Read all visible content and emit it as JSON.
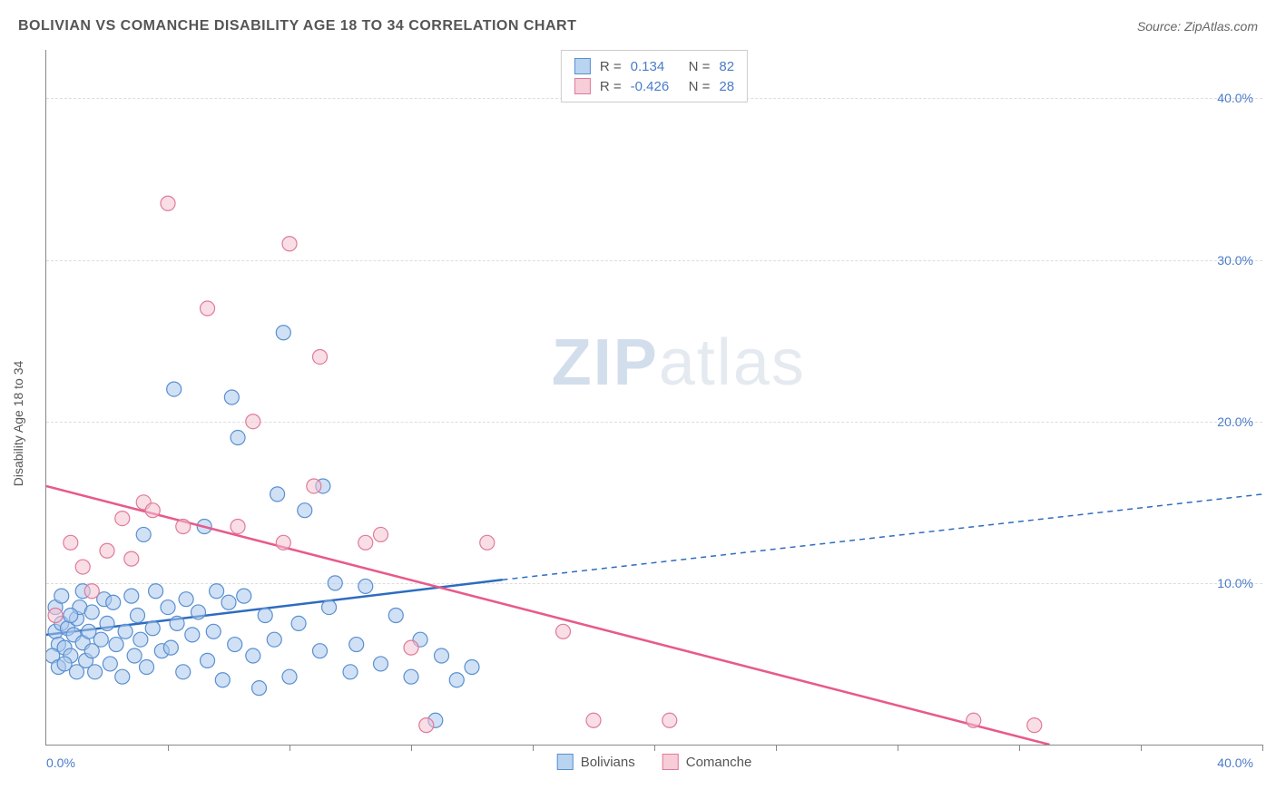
{
  "header": {
    "title": "BOLIVIAN VS COMANCHE DISABILITY AGE 18 TO 34 CORRELATION CHART",
    "source": "Source: ZipAtlas.com"
  },
  "axes": {
    "y_label": "Disability Age 18 to 34",
    "x_origin": "0.0%",
    "x_max": "40.0%",
    "xlim": [
      0,
      40
    ],
    "ylim": [
      0,
      43
    ],
    "y_ticks": [
      {
        "v": 10,
        "label": "10.0%"
      },
      {
        "v": 20,
        "label": "20.0%"
      },
      {
        "v": 30,
        "label": "30.0%"
      },
      {
        "v": 40,
        "label": "40.0%"
      }
    ],
    "x_ticks": [
      0,
      4,
      8,
      12,
      16,
      20,
      24,
      28,
      32,
      36,
      40
    ],
    "grid_color": "#dddddd",
    "axis_color": "#888888",
    "tick_label_color": "#4a7bc8"
  },
  "stats": {
    "rows": [
      {
        "swatch_fill": "#b9d4f0",
        "swatch_border": "#5a8fd0",
        "r_label": "R =",
        "r": "0.134",
        "n_label": "N =",
        "n": "82"
      },
      {
        "swatch_fill": "#f7cdd8",
        "swatch_border": "#e07a9a",
        "r_label": "R =",
        "r": "-0.426",
        "n_label": "N =",
        "n": "28"
      }
    ]
  },
  "legend": {
    "items": [
      {
        "swatch_fill": "#b9d4f0",
        "swatch_border": "#5a8fd0",
        "label": "Bolivians"
      },
      {
        "swatch_fill": "#f7cdd8",
        "swatch_border": "#e07a9a",
        "label": "Comanche"
      }
    ]
  },
  "watermark": {
    "bold": "ZIP",
    "rest": "atlas"
  },
  "chart": {
    "type": "scatter",
    "background_color": "#ffffff",
    "marker_radius": 8,
    "marker_opacity": 0.55,
    "series": [
      {
        "name": "Bolivians",
        "color_fill": "#a9c9ec",
        "color_stroke": "#5a8fd0",
        "trend": {
          "x1": 0,
          "y1": 6.8,
          "x2": 15,
          "y2": 10.2,
          "dash_to_x": 40,
          "dash_to_y": 15.5,
          "color": "#2d6cc0",
          "width": 2.5
        },
        "points": [
          [
            0.3,
            7.0
          ],
          [
            0.4,
            6.2
          ],
          [
            0.5,
            7.5
          ],
          [
            0.6,
            6.0
          ],
          [
            0.7,
            7.2
          ],
          [
            0.8,
            5.5
          ],
          [
            0.9,
            6.8
          ],
          [
            1.0,
            7.8
          ],
          [
            1.1,
            8.5
          ],
          [
            1.2,
            6.3
          ],
          [
            1.3,
            5.2
          ],
          [
            1.4,
            7.0
          ],
          [
            1.5,
            8.2
          ],
          [
            1.6,
            4.5
          ],
          [
            1.8,
            6.5
          ],
          [
            1.9,
            9.0
          ],
          [
            2.0,
            7.5
          ],
          [
            2.1,
            5.0
          ],
          [
            2.2,
            8.8
          ],
          [
            2.3,
            6.2
          ],
          [
            2.5,
            4.2
          ],
          [
            2.6,
            7.0
          ],
          [
            2.8,
            9.2
          ],
          [
            2.9,
            5.5
          ],
          [
            3.0,
            8.0
          ],
          [
            3.1,
            6.5
          ],
          [
            3.2,
            13.0
          ],
          [
            3.3,
            4.8
          ],
          [
            3.5,
            7.2
          ],
          [
            3.6,
            9.5
          ],
          [
            3.8,
            5.8
          ],
          [
            4.0,
            8.5
          ],
          [
            4.1,
            6.0
          ],
          [
            4.2,
            22.0
          ],
          [
            4.3,
            7.5
          ],
          [
            4.5,
            4.5
          ],
          [
            4.6,
            9.0
          ],
          [
            4.8,
            6.8
          ],
          [
            5.0,
            8.2
          ],
          [
            5.2,
            13.5
          ],
          [
            5.3,
            5.2
          ],
          [
            5.5,
            7.0
          ],
          [
            5.6,
            9.5
          ],
          [
            5.8,
            4.0
          ],
          [
            6.0,
            8.8
          ],
          [
            6.1,
            21.5
          ],
          [
            6.2,
            6.2
          ],
          [
            6.3,
            19.0
          ],
          [
            6.5,
            9.2
          ],
          [
            6.8,
            5.5
          ],
          [
            7.0,
            3.5
          ],
          [
            7.2,
            8.0
          ],
          [
            7.5,
            6.5
          ],
          [
            7.6,
            15.5
          ],
          [
            7.8,
            25.5
          ],
          [
            8.0,
            4.2
          ],
          [
            8.3,
            7.5
          ],
          [
            8.5,
            14.5
          ],
          [
            9.0,
            5.8
          ],
          [
            9.1,
            16.0
          ],
          [
            9.3,
            8.5
          ],
          [
            9.5,
            10.0
          ],
          [
            10.0,
            4.5
          ],
          [
            10.2,
            6.2
          ],
          [
            10.5,
            9.8
          ],
          [
            11.0,
            5.0
          ],
          [
            11.5,
            8.0
          ],
          [
            12.0,
            4.2
          ],
          [
            12.3,
            6.5
          ],
          [
            12.8,
            1.5
          ],
          [
            13.0,
            5.5
          ],
          [
            13.5,
            4.0
          ],
          [
            14.0,
            4.8
          ],
          [
            0.2,
            5.5
          ],
          [
            0.3,
            8.5
          ],
          [
            0.4,
            4.8
          ],
          [
            0.5,
            9.2
          ],
          [
            0.6,
            5.0
          ],
          [
            0.8,
            8.0
          ],
          [
            1.0,
            4.5
          ],
          [
            1.2,
            9.5
          ],
          [
            1.5,
            5.8
          ]
        ]
      },
      {
        "name": "Comanche",
        "color_fill": "#f4c3d1",
        "color_stroke": "#e07a9a",
        "trend": {
          "x1": 0,
          "y1": 16.0,
          "x2": 33,
          "y2": 0,
          "color": "#e85a8a",
          "width": 2.5
        },
        "points": [
          [
            0.3,
            8.0
          ],
          [
            0.8,
            12.5
          ],
          [
            1.2,
            11.0
          ],
          [
            1.5,
            9.5
          ],
          [
            2.0,
            12.0
          ],
          [
            2.5,
            14.0
          ],
          [
            2.8,
            11.5
          ],
          [
            3.2,
            15.0
          ],
          [
            3.5,
            14.5
          ],
          [
            4.0,
            33.5
          ],
          [
            4.5,
            13.5
          ],
          [
            5.3,
            27.0
          ],
          [
            6.3,
            13.5
          ],
          [
            6.8,
            20.0
          ],
          [
            7.8,
            12.5
          ],
          [
            8.0,
            31.0
          ],
          [
            8.8,
            16.0
          ],
          [
            9.0,
            24.0
          ],
          [
            10.5,
            12.5
          ],
          [
            11.0,
            13.0
          ],
          [
            12.0,
            6.0
          ],
          [
            12.5,
            1.2
          ],
          [
            14.5,
            12.5
          ],
          [
            17.0,
            7.0
          ],
          [
            18.0,
            1.5
          ],
          [
            20.5,
            1.5
          ],
          [
            30.5,
            1.5
          ],
          [
            32.5,
            1.2
          ]
        ]
      }
    ]
  }
}
